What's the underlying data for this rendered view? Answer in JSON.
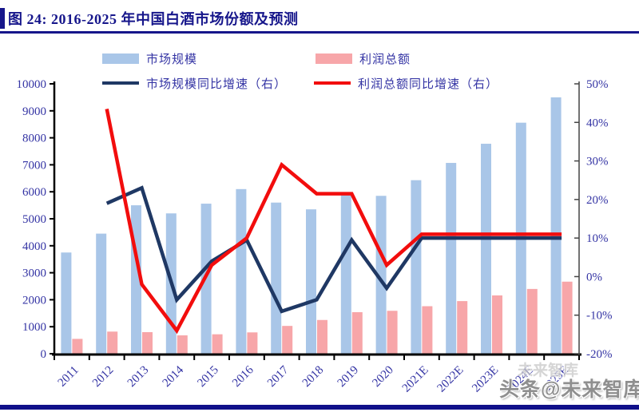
{
  "header": {
    "title": "图 24: 2016-2025 年中国白酒市场份额及预测"
  },
  "colors": {
    "accent_navy": "#16168B",
    "bar_blue": "#A9C6E8",
    "bar_pink": "#F7A6A9",
    "line_navy": "#1F3864",
    "line_red": "#F20D0D",
    "axis_text": "#3434A4",
    "axis_line": "#000000",
    "footer_rule": "#10108A"
  },
  "chart_data": {
    "type": "bar",
    "subtype": "combo bar+line, dual axis",
    "title": "图 24: 2016-2025 年中国白酒市场份额及预测",
    "legend_position": "top",
    "grid": "off",
    "categories": [
      "2011",
      "2012",
      "2013",
      "2014",
      "2015",
      "2016",
      "2017",
      "2018",
      "2019",
      "2020",
      "2021E",
      "2022E",
      "2023E",
      "2024E",
      "2025E"
    ],
    "series": [
      {
        "key": "market_size",
        "name": "市场规模",
        "type": "bar",
        "axis": "left",
        "color": "#A9C6E8",
        "values": [
          3750,
          4450,
          5500,
          5200,
          5560,
          6100,
          5600,
          5350,
          5900,
          5850,
          6430,
          7070,
          7780,
          8560,
          9500
        ]
      },
      {
        "key": "profit",
        "name": "利润总额",
        "type": "bar",
        "axis": "left",
        "color": "#F7A6A9",
        "values": [
          550,
          820,
          800,
          680,
          720,
          790,
          1030,
          1250,
          1540,
          1590,
          1760,
          1950,
          2160,
          2400,
          2670
        ]
      },
      {
        "key": "market_growth",
        "name": "市场规模同比增速（右）",
        "type": "line",
        "axis": "right",
        "color": "#1F3864",
        "values": [
          null,
          19,
          23,
          -6,
          4,
          9.5,
          -9,
          -6,
          9.5,
          -3,
          10,
          10,
          10,
          10,
          10
        ]
      },
      {
        "key": "profit_growth",
        "name": "利润总额同比增速（右）",
        "type": "line",
        "axis": "right",
        "color": "#F20D0D",
        "values": [
          null,
          43.5,
          -2,
          -14,
          3,
          10,
          29,
          21.5,
          21.5,
          3,
          11,
          11,
          11,
          11,
          11
        ]
      }
    ],
    "left_axis": {
      "min": 0,
      "max": 10000,
      "ticks": [
        "10000",
        "9000",
        "8000",
        "7000",
        "6000",
        "5000",
        "4000",
        "3000",
        "2000",
        "1000",
        "0"
      ]
    },
    "right_axis": {
      "min": -20,
      "max": 50,
      "ticks": [
        "50%",
        "40%",
        "30%",
        "20%",
        "10%",
        "0%",
        "-10%",
        "-20%"
      ]
    }
  },
  "watermark": {
    "text": "头条@未来智库",
    "ghost": "未来智库"
  }
}
